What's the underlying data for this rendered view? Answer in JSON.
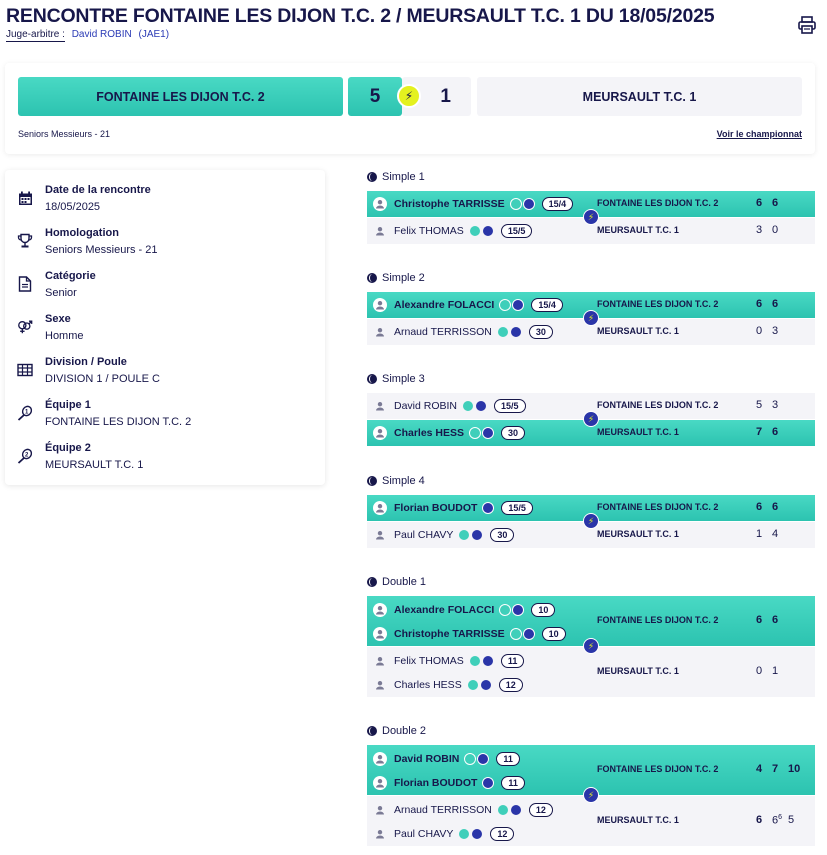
{
  "header": {
    "title": "RENCONTRE FONTAINE LES DIJON T.C. 2 / MEURSAULT T.C. 1 DU 18/05/2025",
    "judge_label": "Juge-arbitre :",
    "judge_name": "David ROBIN",
    "judge_code": "(JAE1)",
    "print_icon": "printer-icon"
  },
  "scoreboard": {
    "team1": "FONTAINE LES DIJON T.C. 2",
    "score1": "5",
    "score2": "1",
    "team2": "MEURSAULT T.C. 1",
    "winner_icon": "lightning-bolt-icon",
    "category": "Seniors Messieurs - 21",
    "championship_link": "Voir le championnat"
  },
  "info": [
    {
      "label": "Date de la rencontre",
      "value": "18/05/2025",
      "icon": "calendar-icon"
    },
    {
      "label": "Homologation",
      "value": "Seniors Messieurs - 21",
      "icon": "trophy-icon"
    },
    {
      "label": "Catégorie",
      "value": "Senior",
      "icon": "document-icon"
    },
    {
      "label": "Sexe",
      "value": "Homme",
      "icon": "gender-icon"
    },
    {
      "label": "Division / Poule",
      "value": "DIVISION 1 / POULE C",
      "icon": "grid-icon"
    },
    {
      "label": "Équipe 1",
      "value": "FONTAINE LES DIJON T.C. 2",
      "icon": "racket-1-icon"
    },
    {
      "label": "Équipe 2",
      "value": "MEURSAULT T.C. 1",
      "icon": "racket-2-icon"
    }
  ],
  "matches": [
    {
      "title": "Simple 1",
      "home": {
        "team": "FONTAINE LES DIJON T.C. 2",
        "winner": true,
        "players": [
          {
            "name": "Christophe TARRISSE",
            "rank": "15/4",
            "teal": true,
            "blue": true
          }
        ],
        "sets": [
          "6",
          "6"
        ]
      },
      "away": {
        "team": "MEURSAULT T.C. 1",
        "winner": false,
        "players": [
          {
            "name": "Felix THOMAS",
            "rank": "15/5",
            "teal": true,
            "blue": true
          }
        ],
        "sets": [
          "3",
          "0"
        ]
      }
    },
    {
      "title": "Simple 2",
      "home": {
        "team": "FONTAINE LES DIJON T.C. 2",
        "winner": true,
        "players": [
          {
            "name": "Alexandre FOLACCI",
            "rank": "15/4",
            "teal": true,
            "blue": true
          }
        ],
        "sets": [
          "6",
          "6"
        ]
      },
      "away": {
        "team": "MEURSAULT T.C. 1",
        "winner": false,
        "players": [
          {
            "name": "Arnaud TERRISSON",
            "rank": "30",
            "teal": true,
            "blue": true
          }
        ],
        "sets": [
          "0",
          "3"
        ]
      }
    },
    {
      "title": "Simple 3",
      "home": {
        "team": "FONTAINE LES DIJON T.C. 2",
        "winner": false,
        "players": [
          {
            "name": "David ROBIN",
            "rank": "15/5",
            "teal": true,
            "blue": true
          }
        ],
        "sets": [
          "5",
          "3"
        ]
      },
      "away": {
        "team": "MEURSAULT T.C. 1",
        "winner": true,
        "players": [
          {
            "name": "Charles HESS",
            "rank": "30",
            "teal": true,
            "blue": true
          }
        ],
        "sets": [
          "7",
          "6"
        ]
      }
    },
    {
      "title": "Simple 4",
      "home": {
        "team": "FONTAINE LES DIJON T.C. 2",
        "winner": true,
        "players": [
          {
            "name": "Florian BOUDOT",
            "rank": "15/5",
            "teal": false,
            "blue": true
          }
        ],
        "sets": [
          "6",
          "6"
        ]
      },
      "away": {
        "team": "MEURSAULT T.C. 1",
        "winner": false,
        "players": [
          {
            "name": "Paul CHAVY",
            "rank": "30",
            "teal": true,
            "blue": true
          }
        ],
        "sets": [
          "1",
          "4"
        ]
      }
    },
    {
      "title": "Double 1",
      "home": {
        "team": "FONTAINE LES DIJON T.C. 2",
        "winner": true,
        "players": [
          {
            "name": "Alexandre FOLACCI",
            "rank": "10",
            "teal": true,
            "blue": true
          },
          {
            "name": "Christophe TARRISSE",
            "rank": "10",
            "teal": true,
            "blue": true
          }
        ],
        "sets": [
          "6",
          "6"
        ]
      },
      "away": {
        "team": "MEURSAULT T.C. 1",
        "winner": false,
        "players": [
          {
            "name": "Felix THOMAS",
            "rank": "11",
            "teal": true,
            "blue": true
          },
          {
            "name": "Charles HESS",
            "rank": "12",
            "teal": true,
            "blue": true
          }
        ],
        "sets": [
          "0",
          "1"
        ]
      }
    },
    {
      "title": "Double 2",
      "home": {
        "team": "FONTAINE LES DIJON T.C. 2",
        "winner": true,
        "players": [
          {
            "name": "David ROBIN",
            "rank": "11",
            "teal": true,
            "blue": true
          },
          {
            "name": "Florian BOUDOT",
            "rank": "11",
            "teal": false,
            "blue": true
          }
        ],
        "sets": [
          "4",
          "7",
          "10"
        ]
      },
      "away": {
        "team": "MEURSAULT T.C. 1",
        "winner": false,
        "players": [
          {
            "name": "Arnaud TERRISSON",
            "rank": "12",
            "teal": true,
            "blue": true
          },
          {
            "name": "Paul CHAVY",
            "rank": "12",
            "teal": true,
            "blue": true
          }
        ],
        "sets": [
          "6",
          "6",
          "5"
        ],
        "tiebreak": "6"
      }
    }
  ]
}
